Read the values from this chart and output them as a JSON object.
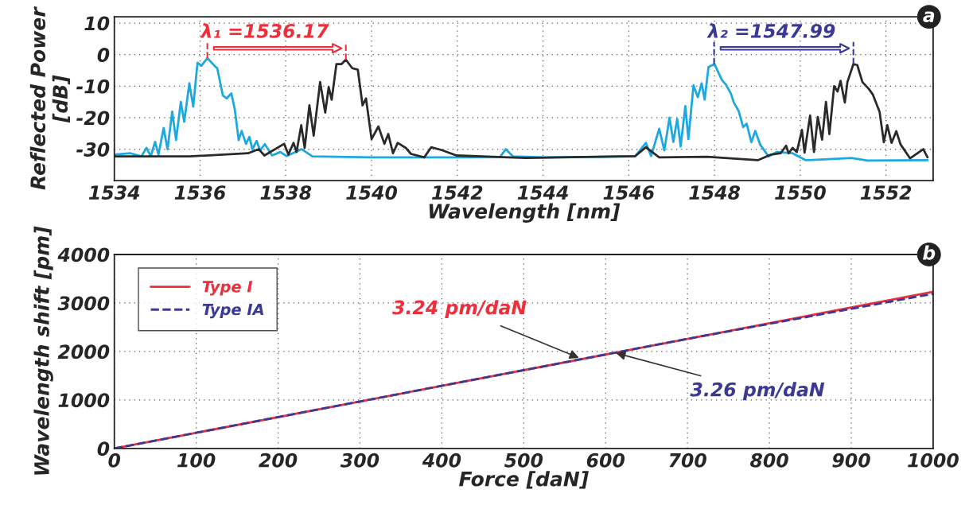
{
  "chart_data": [
    {
      "type": "line",
      "xlabel": "Wavelength [nm]",
      "ylabel": "Reflected Power\n[dB]",
      "xlim": [
        1534,
        1553.1
      ],
      "ylim": [
        -40,
        12
      ],
      "xticks": [
        1534,
        1536,
        1538,
        1540,
        1542,
        1544,
        1546,
        1548,
        1550,
        1552
      ],
      "yticks": [
        -30,
        -20,
        -10,
        0,
        10
      ],
      "grid": true,
      "legend": false,
      "line_style": "solid",
      "annotations": [
        "a",
        {
          "text": "λ₁ =1536.17",
          "x": 1536.17,
          "y": -1.1
        },
        {
          "text": "λ₂ =1547.99",
          "x": 1547.99,
          "y": -3
        }
      ],
      "series": [
        {
          "color": "#1ea8e0",
          "x": [
            1534,
            1534.38,
            1534.63,
            1534.75,
            1534.85,
            1534.95,
            1535.03,
            1535.15,
            1535.24,
            1535.35,
            1535.44,
            1535.55,
            1535.63,
            1535.75,
            1535.84,
            1535.94,
            1536.03,
            1536.17,
            1536.36,
            1536.4,
            1536.53,
            1536.62,
            1536.73,
            1536.81,
            1536.9,
            1536.97,
            1537.07,
            1537.15,
            1537.22,
            1537.32,
            1537.4,
            1537.51,
            1537.68,
            1537.87,
            1538.02,
            1538.37,
            1538.62,
            1540,
            1542,
            1543,
            1543.13,
            1543.3,
            1544,
            1546.15,
            1546.4,
            1546.52,
            1546.71,
            1546.83,
            1546.95,
            1547.04,
            1547.13,
            1547.21,
            1547.32,
            1547.39,
            1547.51,
            1547.61,
            1547.7,
            1547.77,
            1547.86,
            1548.0,
            1548.17,
            1548.27,
            1548.38,
            1548.45,
            1548.56,
            1548.67,
            1548.75,
            1548.86,
            1548.95,
            1549.07,
            1549.26,
            1549.45,
            1549.82,
            1550.13,
            1550.94,
            1551.19,
            1551.57,
            1552.97
          ],
          "values": [
            -31.7,
            -31.3,
            -32.3,
            -29.6,
            -32.2,
            -27.7,
            -31.7,
            -23.3,
            -30,
            -18.1,
            -27.1,
            -15,
            -21.3,
            -9.1,
            -16.5,
            -2.6,
            -3.5,
            -1.1,
            -3.9,
            -4.3,
            -12.9,
            -13.9,
            -12.3,
            -17.4,
            -27.1,
            -24.2,
            -28.3,
            -26.1,
            -30,
            -27.4,
            -30.4,
            -28.4,
            -32,
            -30.9,
            -32.2,
            -30,
            -32.3,
            -32.6,
            -32.6,
            -32.4,
            -30,
            -32.3,
            -32.6,
            -32.3,
            -28,
            -32.2,
            -23.5,
            -30.4,
            -20,
            -27.7,
            -20.4,
            -29.1,
            -16.3,
            -26.8,
            -9.7,
            -13.5,
            -9.1,
            -14.3,
            -3.9,
            -3,
            -8,
            -9.6,
            -12.3,
            -15.2,
            -17.8,
            -23,
            -21.9,
            -27.8,
            -24.2,
            -28.7,
            -32.3,
            -30.9,
            -31.3,
            -33.5,
            -33,
            -32.8,
            -33.6,
            -33.5
          ]
        },
        {
          "color": "#2a2a2a",
          "x": [
            1534,
            1535.75,
            1537.12,
            1537.37,
            1537.5,
            1537.96,
            1538.06,
            1538.18,
            1538.25,
            1538.36,
            1538.44,
            1538.55,
            1538.65,
            1538.8,
            1538.92,
            1539.0,
            1539.07,
            1539.18,
            1539.3,
            1539.4,
            1539.55,
            1539.68,
            1539.79,
            1539.87,
            1540.0,
            1540.16,
            1540.3,
            1540.39,
            1540.5,
            1540.61,
            1540.8,
            1540.92,
            1541.23,
            1541.39,
            1541.64,
            1541.98,
            1543.2,
            1543.6,
            1546.15,
            1546.4,
            1546.71,
            1547.83,
            1549.01,
            1549.32,
            1549.54,
            1549.67,
            1549.73,
            1549.82,
            1549.92,
            1550.04,
            1550.1,
            1550.23,
            1550.32,
            1550.41,
            1550.51,
            1550.6,
            1550.68,
            1550.79,
            1550.87,
            1550.94,
            1551.04,
            1551.1,
            1551.24,
            1551.33,
            1551.45,
            1551.6,
            1551.69,
            1551.85,
            1551.95,
            1552.03,
            1552.13,
            1552.24,
            1552.34,
            1552.56,
            1552.87,
            1552.97
          ],
          "values": [
            -32.3,
            -32.3,
            -31.3,
            -30,
            -32,
            -28.3,
            -31.7,
            -28,
            -30.9,
            -22.4,
            -29.6,
            -16.1,
            -25.7,
            -8.7,
            -18.4,
            -10.3,
            -14.3,
            -3,
            -3,
            -1.6,
            -4.3,
            -4.8,
            -16.1,
            -13.9,
            -26.8,
            -22.8,
            -28.3,
            -25.2,
            -31.3,
            -28,
            -29.6,
            -31.5,
            -32.6,
            -29.4,
            -30.3,
            -32,
            -32.6,
            -32.8,
            -32.2,
            -29.4,
            -32.6,
            -32.4,
            -33.5,
            -31.7,
            -31.3,
            -28.9,
            -31.3,
            -29.6,
            -30.9,
            -23.9,
            -31.1,
            -19.3,
            -30.9,
            -19.8,
            -27,
            -15,
            -25.2,
            -10,
            -11.7,
            -8.3,
            -15.2,
            -8.7,
            -3,
            -3.3,
            -8.7,
            -10.9,
            -12.6,
            -18.1,
            -27.8,
            -22.4,
            -28,
            -24.3,
            -28.5,
            -32.9,
            -30,
            -32.6
          ]
        }
      ]
    },
    {
      "type": "line",
      "xlabel": "Force [daN]",
      "ylabel": "Wavelength shift [pm]",
      "xlim": [
        0,
        1000
      ],
      "ylim": [
        0,
        4000
      ],
      "xticks": [
        0,
        100,
        200,
        300,
        400,
        500,
        600,
        700,
        800,
        900,
        1000
      ],
      "yticks": [
        0,
        1000,
        2000,
        3000,
        4000
      ],
      "grid": true,
      "legend": "top left",
      "annotations": [
        "b",
        {
          "text": "3.24 pm/daN",
          "x": 570,
          "y": 1850
        },
        {
          "text": "3.26 pm/daN",
          "x": 610,
          "y": 1980
        }
      ],
      "series": [
        {
          "name": "Type I",
          "color": "#ee2e3a",
          "line_style": "solid",
          "x": [
            0,
            700,
            1000
          ],
          "values": [
            0,
            2260,
            3230
          ]
        },
        {
          "name": "Type IA",
          "color": "#3a3a96",
          "line_style": "dashed",
          "x": [
            0,
            700,
            1000
          ],
          "values": [
            0,
            2260,
            3190
          ]
        }
      ]
    }
  ]
}
